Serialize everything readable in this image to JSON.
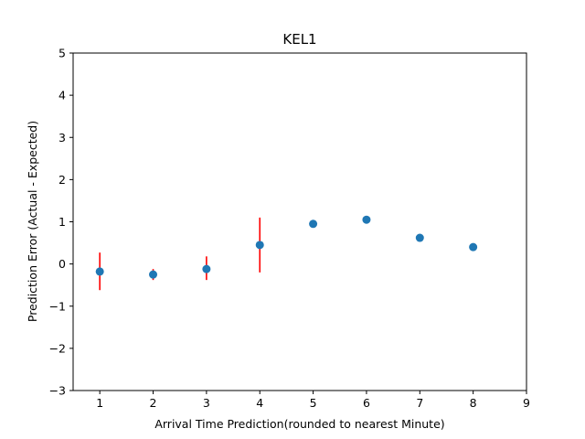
{
  "chart_data": {
    "type": "scatter",
    "title": "KEL1",
    "xlabel": "Arrival Time Prediction(rounded to nearest Minute)",
    "ylabel": "Prediction Error (Actual - Expected)",
    "xlim": [
      0.5,
      9
    ],
    "ylim": [
      -3,
      5
    ],
    "xticks": [
      1,
      2,
      3,
      4,
      5,
      6,
      7,
      8,
      9
    ],
    "yticks": [
      -3,
      -2,
      -1,
      0,
      1,
      2,
      3,
      4,
      5
    ],
    "xtick_labels": [
      "1",
      "2",
      "3",
      "4",
      "5",
      "6",
      "7",
      "8",
      "9"
    ],
    "ytick_labels": [
      "−3",
      "−2",
      "−1",
      "0",
      "1",
      "2",
      "3",
      "4",
      "5"
    ],
    "grid": false,
    "point_color": "#1f77b4",
    "errorbar_color": "#ff0000",
    "points": [
      {
        "x": 1,
        "y": -0.18,
        "err_low": -0.62,
        "err_high": 0.27
      },
      {
        "x": 2,
        "y": -0.25,
        "err_low": -0.38,
        "err_high": -0.12
      },
      {
        "x": 3,
        "y": -0.12,
        "err_low": -0.38,
        "err_high": 0.18
      },
      {
        "x": 4,
        "y": 0.45,
        "err_low": -0.2,
        "err_high": 1.1
      },
      {
        "x": 5,
        "y": 0.95,
        "err_low": null,
        "err_high": null
      },
      {
        "x": 6,
        "y": 1.05,
        "err_low": null,
        "err_high": null
      },
      {
        "x": 7,
        "y": 0.62,
        "err_low": null,
        "err_high": null
      },
      {
        "x": 8,
        "y": 0.4,
        "err_low": null,
        "err_high": null
      }
    ]
  }
}
